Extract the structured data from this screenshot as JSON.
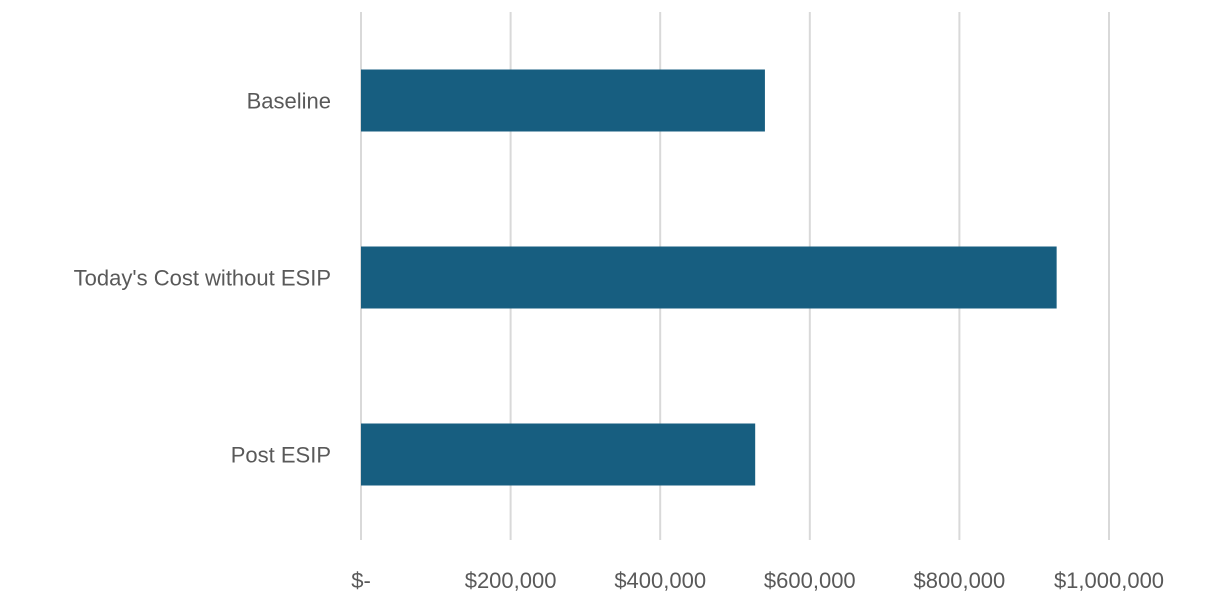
{
  "chart_data": {
    "type": "bar",
    "orientation": "horizontal",
    "categories": [
      "Baseline",
      "Today's Cost without ESIP",
      "Post ESIP"
    ],
    "values": [
      540000,
      930000,
      527000
    ],
    "xlim": [
      0,
      1000000
    ],
    "x_ticks": [
      0,
      200000,
      400000,
      600000,
      800000,
      1000000
    ],
    "x_tick_labels": [
      "$-",
      "$200,000",
      "$400,000",
      "$600,000",
      "$800,000",
      "$1,000,000"
    ],
    "grid": "vertical",
    "bar_color": "#175e80",
    "title": "",
    "xlabel": "",
    "ylabel": ""
  }
}
